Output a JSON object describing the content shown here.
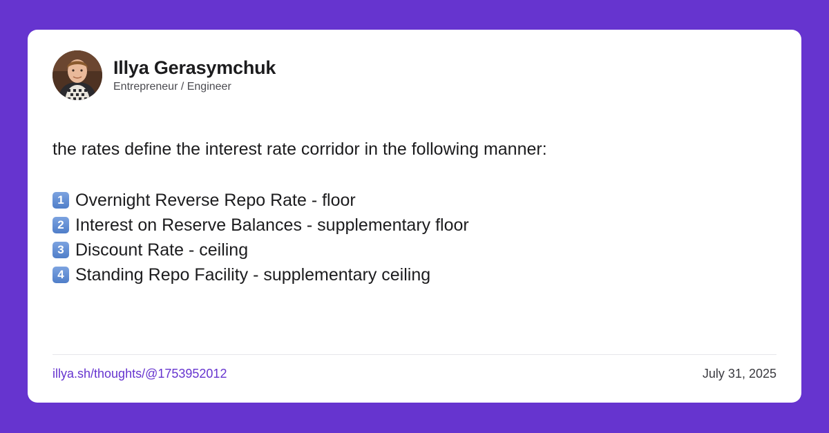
{
  "author": {
    "name": "Illya Gerasymchuk",
    "role": "Entrepreneur / Engineer",
    "avatar_icon": "profile-photo"
  },
  "post": {
    "intro": "the rates define the interest rate corridor in the following manner:",
    "items": [
      {
        "number": "1",
        "text": "Overnight Reverse Repo Rate - floor"
      },
      {
        "number": "2",
        "text": "Interest on Reserve Balances - supplementary floor"
      },
      {
        "number": "3",
        "text": "Discount Rate - ceiling"
      },
      {
        "number": "4",
        "text": "Standing Repo Facility - supplementary ceiling"
      }
    ]
  },
  "footer": {
    "link": "illya.sh/thoughts/@1753952012",
    "date": "July 31, 2025"
  },
  "colors": {
    "background": "#6634cf",
    "card": "#ffffff",
    "link": "#6634cf",
    "badge": "#4f7ec9"
  }
}
